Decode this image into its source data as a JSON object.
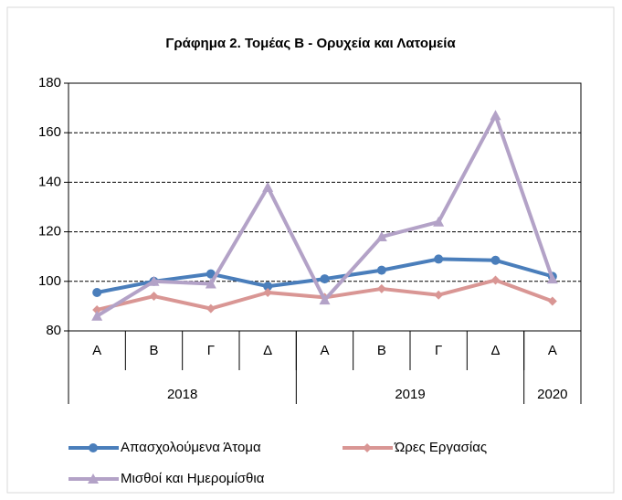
{
  "chart_data": {
    "type": "line",
    "title": "Γράφημα 2. Τομέας Β - Ορυχεία και Λατομεία",
    "categories": [
      "Α",
      "Β",
      "Γ",
      "Δ",
      "Α",
      "Β",
      "Γ",
      "Δ",
      "Α"
    ],
    "groups": [
      {
        "label": "2018",
        "span": 4
      },
      {
        "label": "2019",
        "span": 4
      },
      {
        "label": "2020",
        "span": 1
      }
    ],
    "series": [
      {
        "name": "Απασχολούμενα Άτομα",
        "color": "#4a7ebb",
        "marker": "circle",
        "values": [
          95.5,
          100,
          103,
          98,
          101,
          104.5,
          109,
          108.5,
          102
        ]
      },
      {
        "name": "Ώρες Εργασίας",
        "color": "#d99694",
        "marker": "diamond",
        "values": [
          88.5,
          94,
          89,
          95.5,
          93.5,
          97,
          94.5,
          100.5,
          92
        ]
      },
      {
        "name": "Μισθοί και Ημερομίσθια",
        "color": "#b3a2c7",
        "marker": "triangle",
        "values": [
          86,
          100,
          99,
          138,
          92.5,
          118,
          124,
          167,
          101
        ]
      }
    ],
    "ylim": [
      80,
      180
    ],
    "yticks": [
      80,
      100,
      120,
      140,
      160,
      180
    ],
    "grid": true,
    "legend": "bottom"
  }
}
